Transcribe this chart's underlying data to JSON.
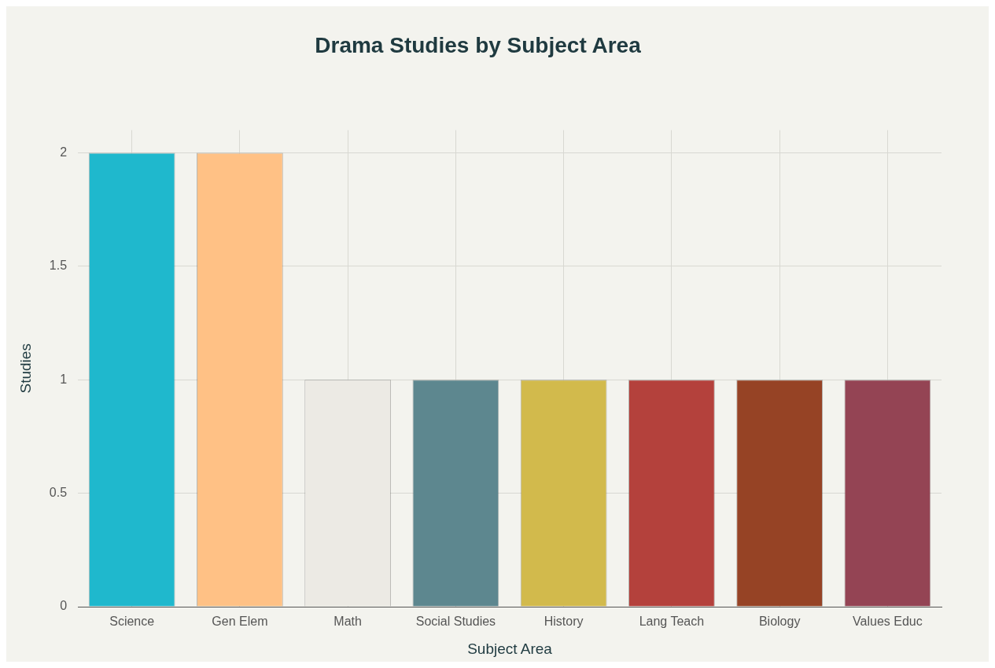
{
  "chart_data": {
    "type": "bar",
    "title": "Drama Studies by Subject Area",
    "xlabel": "Subject Area",
    "ylabel": "Studies",
    "categories": [
      "Science",
      "Gen Elem",
      "Math",
      "Social Studies",
      "History",
      "Lang Teach",
      "Biology",
      "Values Educ"
    ],
    "values": [
      2,
      2,
      1,
      1,
      1,
      1,
      1,
      1
    ],
    "colors": [
      "#1fb8cd",
      "#ffc185",
      "#eceae4",
      "#5d878f",
      "#d2ba4c",
      "#b4413c",
      "#964325",
      "#944454"
    ],
    "ylim": [
      0,
      2.1
    ],
    "yticks": [
      0,
      0.5,
      1,
      1.5,
      2
    ],
    "grid": true,
    "legend": false
  }
}
